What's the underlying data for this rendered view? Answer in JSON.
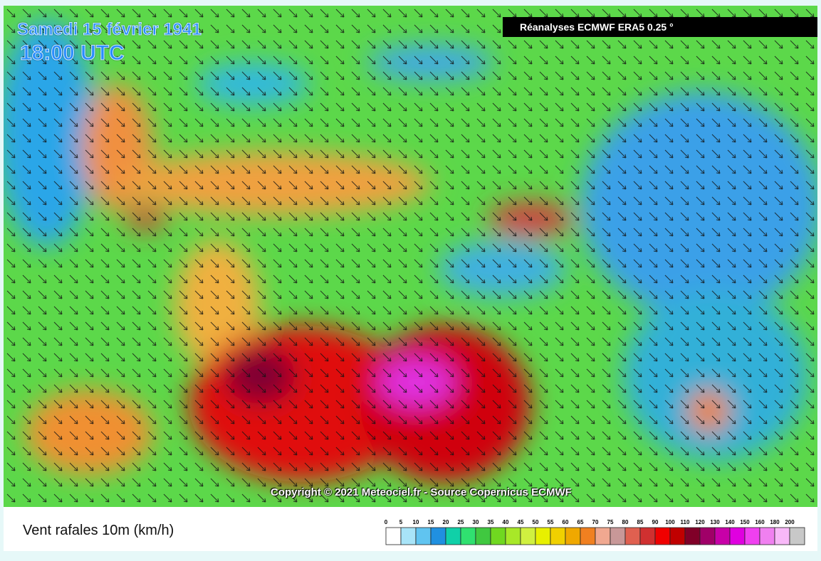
{
  "header": {
    "date": "Samedi 15 février 1941",
    "time": "18:00 UTC",
    "source": "Réanalyses ECMWF ERA5 0.25 °"
  },
  "copyright": "Copyright © 2021 Meteociel.fr - Source Copernicus ECMWF",
  "legend": {
    "title": "Vent rafales 10m (km/h)",
    "labels": [
      0,
      5,
      10,
      15,
      20,
      25,
      30,
      35,
      40,
      45,
      50,
      55,
      60,
      65,
      70,
      75,
      80,
      85,
      90,
      100,
      110,
      120,
      130,
      140,
      150,
      160,
      180,
      200
    ],
    "colors": [
      "#ffffff",
      "#a8e4f8",
      "#60c4f0",
      "#2090e0",
      "#10d0a8",
      "#30e070",
      "#40c840",
      "#70d820",
      "#a8e828",
      "#d0f040",
      "#e8f000",
      "#f0d000",
      "#f0a800",
      "#f08020",
      "#f0a890",
      "#c89898",
      "#e06050",
      "#d03030",
      "#f00000",
      "#c00000",
      "#800028",
      "#a00068",
      "#c800a8",
      "#e000e0",
      "#f040f0",
      "#f080f0",
      "#f8b8f8",
      "#c8c8c8"
    ]
  }
}
